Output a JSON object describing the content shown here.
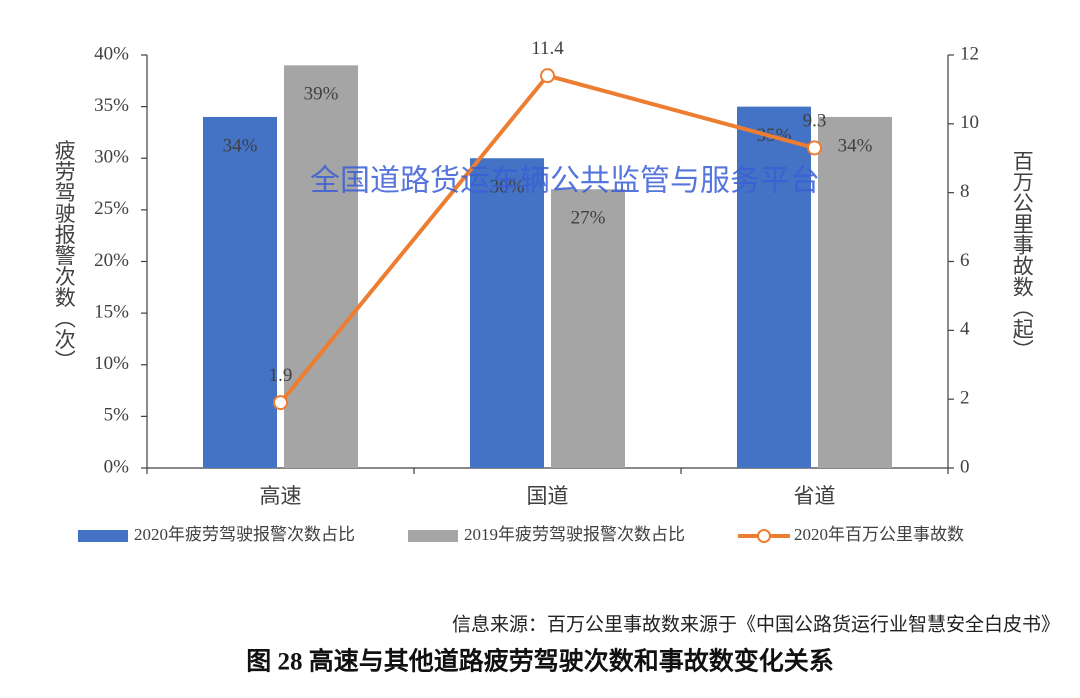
{
  "chart_data": {
    "type": "bar",
    "title": "图 28 高速与其他道路疲劳驾驶次数和事故数变化关系",
    "source": "信息来源：百万公里事故数来源于《中国公路货运行业智慧安全白皮书》",
    "watermark": "全国道路货运车辆公共监管与服务平台",
    "y_label": "疲劳驾驶报警次数（次）",
    "y2_label": "百万公里事故数（起）",
    "categories": [
      "高速",
      "国道",
      "省道"
    ],
    "series": [
      {
        "name": "2020年疲劳驾驶报警次数占比",
        "color": "#4472c4",
        "type": "bar",
        "values": [
          34,
          30,
          35
        ],
        "value_labels": [
          "34%",
          "30%",
          "35%"
        ]
      },
      {
        "name": "2019年疲劳驾驶报警次数占比",
        "color": "#a5a5a5",
        "type": "bar",
        "values": [
          39,
          27,
          34
        ],
        "value_labels": [
          "39%",
          "27%",
          "34%"
        ]
      },
      {
        "name": "2020年百万公里事故数",
        "color": "#ed7d31",
        "type": "line",
        "axis": "y2",
        "values": [
          1.9,
          11.4,
          9.3
        ]
      }
    ],
    "ylim": [
      0,
      40
    ],
    "yticks": [
      {
        "value": 0,
        "label": "0%"
      },
      {
        "value": 5,
        "label": "5%"
      },
      {
        "value": 10,
        "label": "10%"
      },
      {
        "value": 15,
        "label": "15%"
      },
      {
        "value": 20,
        "label": "20%"
      },
      {
        "value": 25,
        "label": "25%"
      },
      {
        "value": 30,
        "label": "30%"
      },
      {
        "value": 35,
        "label": "35%"
      },
      {
        "value": 40,
        "label": "40%"
      }
    ],
    "y2lim": [
      0,
      12
    ],
    "y2ticks": [
      0,
      2,
      4,
      6,
      8,
      10,
      12
    ],
    "legend": "bottom"
  }
}
